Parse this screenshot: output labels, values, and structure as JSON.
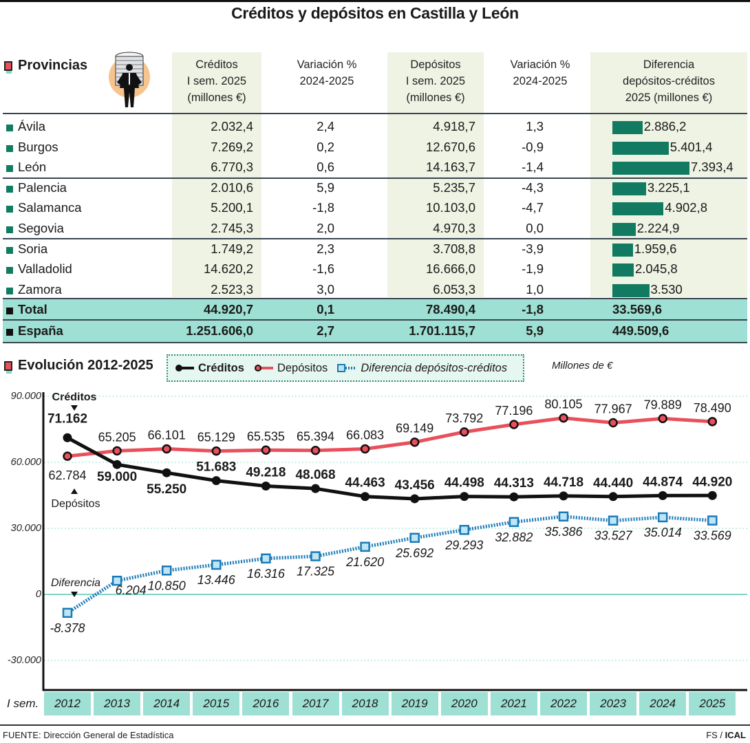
{
  "title": "Créditos y depósitos en Castilla y León",
  "table": {
    "section_title": "Provincias",
    "headers": [
      [
        "Créditos",
        "I sem. 2025",
        "(millones €)"
      ],
      [
        "Variación %",
        "2024-2025"
      ],
      [
        "Depósitos",
        "I sem. 2025",
        "(millones €)"
      ],
      [
        "Variación %",
        "2024-2025"
      ],
      [
        "Diferencia",
        "depósitos-créditos",
        "2025 (millones €)"
      ]
    ],
    "rows": [
      {
        "provincia": "Ávila",
        "creditos": "2.032,4",
        "var_cred": "2,4",
        "depositos": "4.918,7",
        "var_dep": "1,3",
        "diferencia": "2.886,2",
        "dif_value": 2886.2
      },
      {
        "provincia": "Burgos",
        "creditos": "7.269,2",
        "var_cred": "0,2",
        "depositos": "12.670,6",
        "var_dep": "-0,9",
        "diferencia": "5.401,4",
        "dif_value": 5401.4
      },
      {
        "provincia": "León",
        "creditos": "6.770,3",
        "var_cred": "0,6",
        "depositos": "14.163,7",
        "var_dep": "-1,4",
        "diferencia": "7.393,4",
        "dif_value": 7393.4
      },
      {
        "provincia": "Palencia",
        "creditos": "2.010,6",
        "var_cred": "5,9",
        "depositos": "5.235,7",
        "var_dep": "-4,3",
        "diferencia": "3.225,1",
        "dif_value": 3225.1
      },
      {
        "provincia": "Salamanca",
        "creditos": "5.200,1",
        "var_cred": "-1,8",
        "depositos": "10.103,0",
        "var_dep": "-4,7",
        "diferencia": "4.902,8",
        "dif_value": 4902.8
      },
      {
        "provincia": "Segovia",
        "creditos": "2.745,3",
        "var_cred": "2,0",
        "depositos": "4.970,3",
        "var_dep": "0,0",
        "diferencia": "2.224,9",
        "dif_value": 2224.9
      },
      {
        "provincia": "Soria",
        "creditos": "1.749,2",
        "var_cred": "2,3",
        "depositos": "3.708,8",
        "var_dep": "-3,9",
        "diferencia": "1.959,6",
        "dif_value": 1959.6
      },
      {
        "provincia": "Valladolid",
        "creditos": "14.620,2",
        "var_cred": "-1,6",
        "depositos": "16.666,0",
        "var_dep": "-1,9",
        "diferencia": "2.045,8",
        "dif_value": 2045.8
      },
      {
        "provincia": "Zamora",
        "creditos": "2.523,3",
        "var_cred": "3,0",
        "depositos": "6.053,3",
        "var_dep": "1,0",
        "diferencia": "3.530",
        "dif_value": 3530
      }
    ],
    "totals": [
      {
        "provincia": "Total",
        "creditos": "44.920,7",
        "var_cred": "0,1",
        "depositos": "78.490,4",
        "var_dep": "-1,8",
        "diferencia": "33.569,6"
      },
      {
        "provincia": "España",
        "creditos": "1.251.606,0",
        "var_cred": "2,7",
        "depositos": "1.701.115,7",
        "var_dep": "5,9",
        "diferencia": "449.509,6"
      }
    ],
    "bar_color": "#117a60",
    "total_bg": "#9ee0d3",
    "column_bg": "#eef3e3"
  },
  "chart_data": {
    "type": "line",
    "title": "Evolución 2012-2025",
    "units_label": "Millones de €",
    "xlabel": "I sem.",
    "ylabel": "",
    "x": [
      "2012",
      "2013",
      "2014",
      "2015",
      "2016",
      "2017",
      "2018",
      "2019",
      "2020",
      "2021",
      "2022",
      "2023",
      "2024",
      "2025"
    ],
    "ylim": [
      -43500,
      100000
    ],
    "yticks": [
      90000,
      60000,
      30000,
      0,
      -30000
    ],
    "ytick_labels": [
      "90.000",
      "60.000",
      "30.000",
      "0",
      "-30.000"
    ],
    "grid": true,
    "legend_position": "top",
    "series": [
      {
        "name": "Créditos",
        "color": "#111111",
        "marker": "circle",
        "style": "solid",
        "values": [
          71162,
          59000,
          55250,
          51683,
          49218,
          48068,
          44463,
          43456,
          44498,
          44313,
          44718,
          44440,
          44874,
          44920
        ],
        "labels": [
          "71.162",
          "59.000",
          "55.250",
          "51.683",
          "49.218",
          "48.068",
          "44.463",
          "43.456",
          "44.498",
          "44.313",
          "44.718",
          "44.440",
          "44.874",
          "44.920"
        ]
      },
      {
        "name": "Depósitos",
        "color": "#e8505b",
        "marker": "circle",
        "style": "solid",
        "values": [
          62784,
          65205,
          66101,
          65129,
          65535,
          65394,
          66083,
          69149,
          73792,
          77196,
          80105,
          77967,
          79889,
          78490
        ],
        "labels": [
          "62.784",
          "65.205",
          "66.101",
          "65.129",
          "65.535",
          "65.394",
          "66.083",
          "69.149",
          "73.792",
          "77.196",
          "80.105",
          "77.967",
          "79.889",
          "78.490"
        ]
      },
      {
        "name": "Diferencia depósitos-créditos",
        "color": "#1a7ab8",
        "marker": "square",
        "style": "dotted",
        "values": [
          -8378,
          6204,
          10850,
          13446,
          16316,
          17325,
          21620,
          25692,
          29293,
          32882,
          35386,
          33527,
          35014,
          33569
        ],
        "labels": [
          "-8.378",
          "6.204",
          "10.850",
          "13.446",
          "16.316",
          "17.325",
          "21.620",
          "25.692",
          "29.293",
          "32.882",
          "35.386",
          "33.527",
          "35.014",
          "33.569"
        ]
      }
    ],
    "annotations": [
      {
        "text": "Créditos",
        "series": "Créditos",
        "x": "2012"
      },
      {
        "text": "Depósitos",
        "series": "Depósitos",
        "x": "2012"
      },
      {
        "text": "Diferencia",
        "series": "Diferencia depósitos-créditos",
        "x": "2012"
      }
    ]
  },
  "footer": {
    "source": "FUENTE: Dirección General de Estadística",
    "credit_prefix": "FS / ",
    "credit_brand": "ICAL"
  }
}
